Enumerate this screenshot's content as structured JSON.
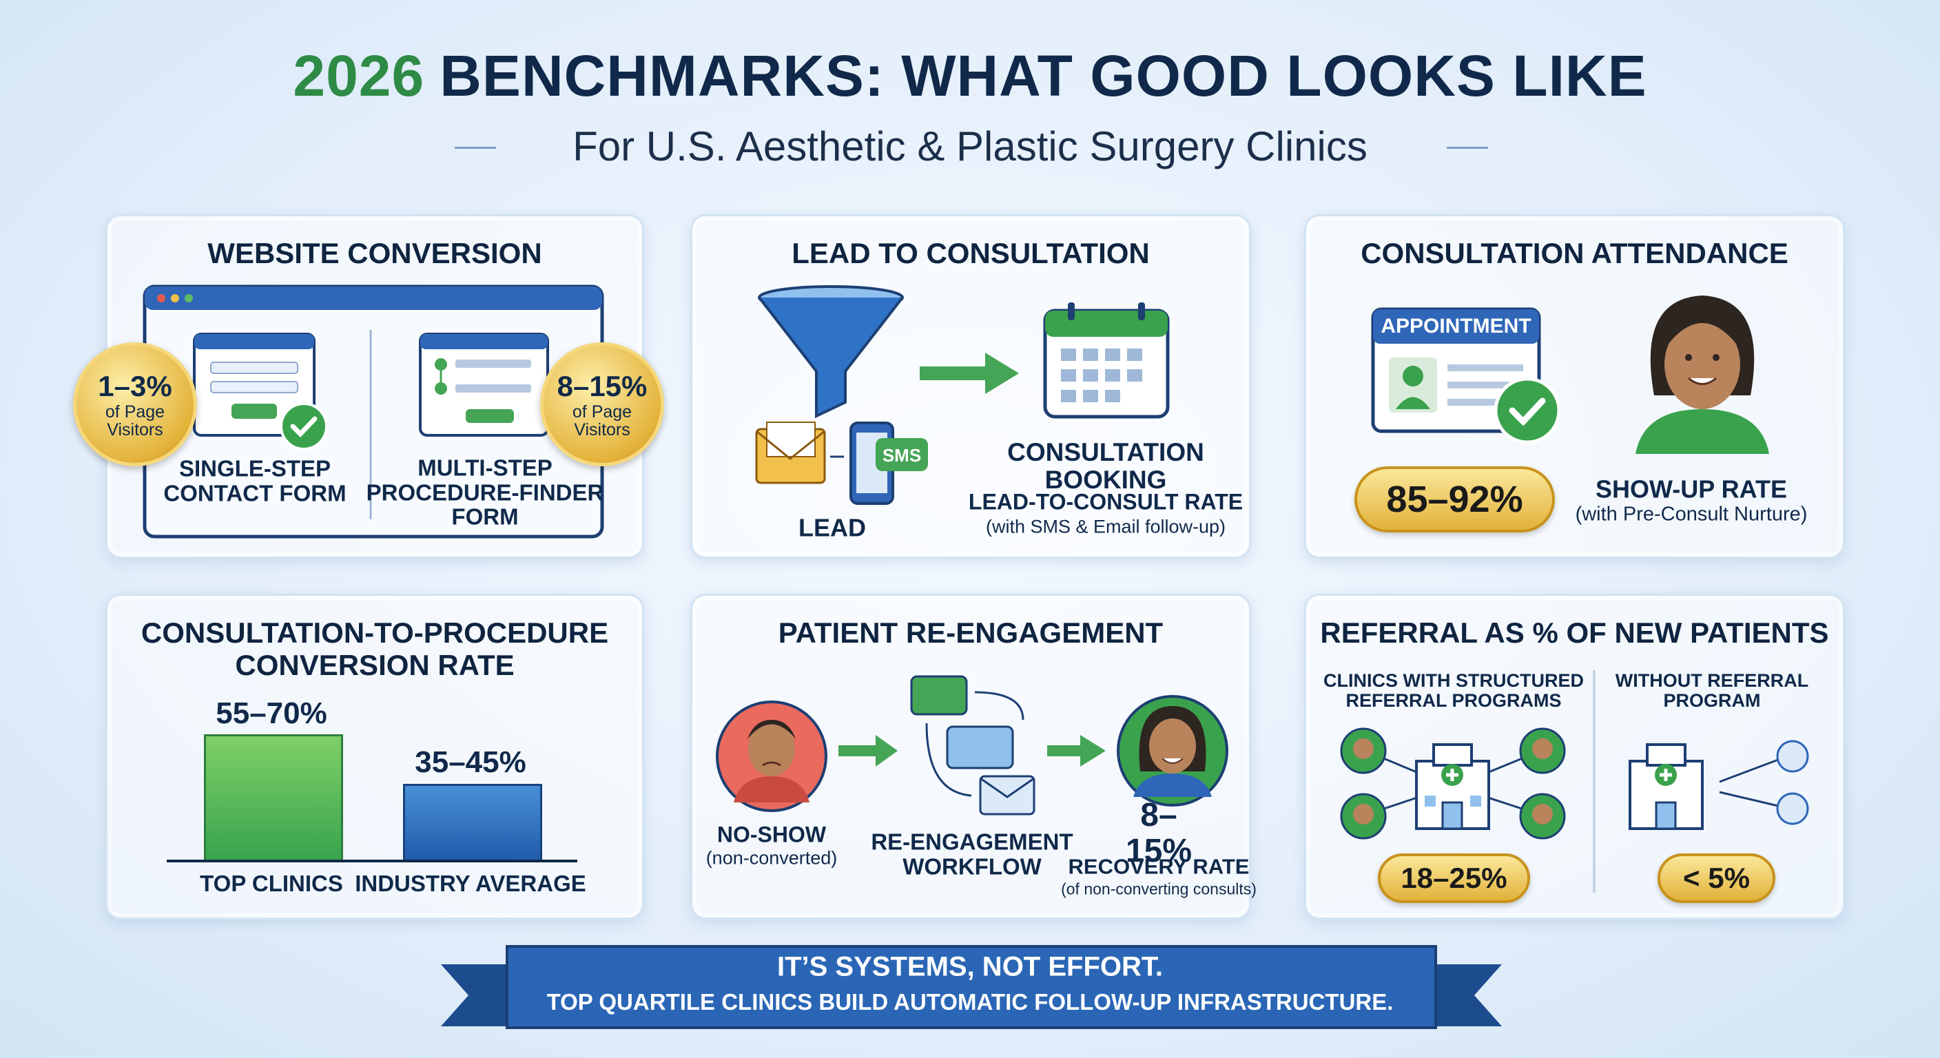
{
  "header": {
    "year": "2026",
    "title": "BENCHMARKS: WHAT GOOD LOOKS LIKE",
    "subtitle": "For U.S. Aesthetic & Plastic Surgery Clinics"
  },
  "cards": [
    {
      "title": "WEBSITE CONVERSION",
      "options": [
        {
          "value": "1–3%",
          "note": "of Page Visitors",
          "label": "SINGLE-STEP CONTACT FORM"
        },
        {
          "value": "8–15%",
          "note": "of Page Visitors",
          "label": "MULTI-STEP PROCEDURE-FINDER FORM"
        }
      ]
    },
    {
      "title": "LEAD TO CONSULTATION",
      "lead": "LEAD",
      "sms": "SMS",
      "booking": "CONSULTATION BOOKING",
      "metric": "LEAD-TO-CONSULT RATE",
      "note": "(with SMS & Email follow-up)"
    },
    {
      "title": "CONSULTATION ATTENDANCE",
      "badge": "APPOINTMENT",
      "value": "85–92%",
      "metric": "SHOW-UP RATE",
      "note": "(with Pre-Consult Nurture)"
    },
    {
      "title": "CONSULTATION-TO-PROCEDURE CONVERSION RATE",
      "bars": [
        {
          "value": "55–70%",
          "label": "TOP CLINICS"
        },
        {
          "value": "35–45%",
          "label": "INDUSTRY AVERAGE"
        }
      ]
    },
    {
      "title": "PATIENT RE-ENGAGEMENT",
      "start": "NO-SHOW",
      "start_note": "(non-converted)",
      "workflow": "RE-ENGAGEMENT WORKFLOW",
      "value": "8–15%",
      "metric": "RECOVERY RATE",
      "note": "(of non-converting consults)"
    },
    {
      "title": "REFERRAL AS % OF NEW PATIENTS",
      "groups": [
        {
          "label": "CLINICS WITH STRUCTURED REFERRAL PROGRAMS",
          "value": "18–25%"
        },
        {
          "label": "WITHOUT REFERRAL PROGRAM",
          "value": "< 5%"
        }
      ]
    }
  ],
  "banner": {
    "headline": "IT’S SYSTEMS, NOT EFFORT.",
    "text": "TOP QUARTILE CLINICS BUILD AUTOMATIC FOLLOW-UP INFRASTRUCTURE."
  }
}
